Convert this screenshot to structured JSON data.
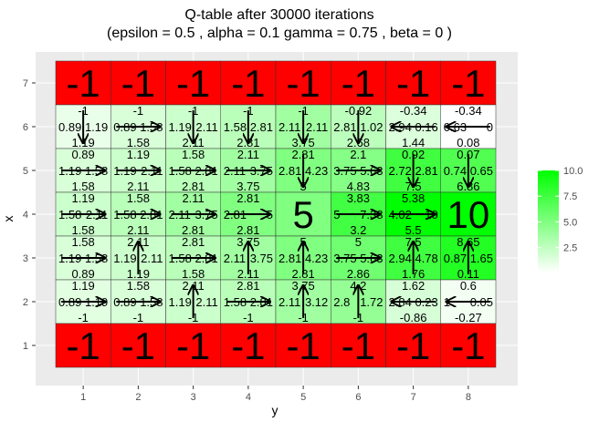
{
  "chart_data": {
    "type": "heatmap",
    "title_line1": "Q-table after  30000  iterations",
    "title_line2": "(epsilon =  0.5 , alpha =  0.1 gamma =  0.75 , beta =  0 )",
    "xlabel": "y",
    "ylabel": "x",
    "x_ticks": [
      "1",
      "2",
      "3",
      "4",
      "5",
      "6",
      "7",
      "8"
    ],
    "y_ticks": [
      "1",
      "2",
      "3",
      "4",
      "5",
      "6",
      "7"
    ],
    "colors": {
      "low": "#ffffff",
      "high": "#00ff00",
      "terminal": "#ff0000",
      "panel": "#ebebeb",
      "grid": "#ffffff"
    },
    "legend": {
      "position": "right",
      "ticks": [
        "10.0",
        "7.5",
        "5.0",
        "2.5"
      ],
      "tick_values": [
        10.0,
        7.5,
        5.0,
        2.5
      ],
      "range": [
        0.08,
        10
      ]
    },
    "grid_columns": [
      "1",
      "2",
      "3",
      "4",
      "5",
      "6",
      "7",
      "8"
    ],
    "grid_rows": [
      {
        "x": "7",
        "cells": [
          {
            "value": "-1",
            "terminal": true
          },
          {
            "value": "-1",
            "terminal": true
          },
          {
            "value": "-1",
            "terminal": true
          },
          {
            "value": "-1",
            "terminal": true
          },
          {
            "value": "-1",
            "terminal": true
          },
          {
            "value": "-1",
            "terminal": true
          },
          {
            "value": "-1",
            "terminal": true
          },
          {
            "value": "-1",
            "terminal": true
          }
        ]
      },
      {
        "x": "6",
        "cells": [
          {
            "v": 0.89,
            "up": "-1",
            "down": "1.19",
            "left": "0.89",
            "right": "1.19",
            "arrow": "down"
          },
          {
            "v": 1.58,
            "up": "-1",
            "down": "1.58",
            "left": "0.89",
            "right": "1.58",
            "arrow": "right"
          },
          {
            "v": 2.11,
            "up": "-1",
            "down": "2.11",
            "left": "1.19",
            "right": "2.11",
            "arrow": "down"
          },
          {
            "v": 2.81,
            "up": "-1",
            "down": "2.81",
            "left": "1.58",
            "right": "2.81",
            "arrow": "down"
          },
          {
            "v": 3.75,
            "up": "-1",
            "down": "3.75",
            "left": "2.11",
            "right": "2.11",
            "arrow": "down"
          },
          {
            "v": 2.68,
            "up": "-0.92",
            "down": "2.68",
            "left": "2.81",
            "right": "1.02",
            "arrow": "down"
          },
          {
            "v": 1.44,
            "up": "-0.34",
            "down": "1.44",
            "left": "2.94",
            "right": "0.16",
            "arrow": "left"
          },
          {
            "v": 0.08,
            "up": "-0.34",
            "down": "0.08",
            "left": "0.63",
            "right": "0",
            "arrow": "left"
          }
        ]
      },
      {
        "x": "5",
        "cells": [
          {
            "v": 1.58,
            "up": "0.89",
            "down": "1.58",
            "left": "1.19",
            "right": "1.58",
            "arrow": "right"
          },
          {
            "v": 2.11,
            "up": "1.19",
            "down": "2.11",
            "left": "1.19",
            "right": "2.11",
            "arrow": "right"
          },
          {
            "v": 2.81,
            "up": "1.58",
            "down": "2.81",
            "left": "1.58",
            "right": "2.81",
            "arrow": "right"
          },
          {
            "v": 3.75,
            "up": "2.11",
            "down": "3.75",
            "left": "2.11",
            "right": "3.75",
            "arrow": "right"
          },
          {
            "v": 5,
            "up": "2.81",
            "down": "5",
            "left": "2.81",
            "right": "4.23",
            "arrow": "down"
          },
          {
            "v": 4.83,
            "up": "2.1",
            "down": "4.83",
            "left": "3.75",
            "right": "5.63",
            "arrow": "right"
          },
          {
            "v": 7.5,
            "up": "0.92",
            "down": "7.5",
            "left": "2.72",
            "right": "2.81",
            "arrow": "down"
          },
          {
            "v": 6.86,
            "up": "0.07",
            "down": "6.86",
            "left": "0.74",
            "right": "0.65",
            "arrow": "down"
          }
        ]
      },
      {
        "x": "4",
        "cells": [
          {
            "v": 2.11,
            "up": "1.19",
            "down": "1.58",
            "left": "1.58",
            "right": "2.11",
            "arrow": "right"
          },
          {
            "v": 2.81,
            "up": "1.58",
            "down": "2.11",
            "left": "1.58",
            "right": "2.81",
            "arrow": "right"
          },
          {
            "v": 3.75,
            "up": "2.11",
            "down": "2.81",
            "left": "2.11",
            "right": "3.75",
            "arrow": "right"
          },
          {
            "v": 5,
            "up": "2.81",
            "down": "2.81",
            "left": "2.81",
            "right": "5",
            "arrow": "right"
          },
          {
            "value": "5",
            "goal": true
          },
          {
            "v": 7.38,
            "up": "3.83",
            "down": "3.2",
            "left": "5",
            "right": "7.38",
            "arrow": "right"
          },
          {
            "v": 10,
            "up": "5.38",
            "down": "5.5",
            "left": "4.02",
            "right": "10",
            "arrow": "right"
          },
          {
            "value": "10",
            "goal": true
          }
        ]
      },
      {
        "x": "3",
        "cells": [
          {
            "v": 1.58,
            "up": "1.58",
            "down": "0.89",
            "left": "1.19",
            "right": "1.58",
            "arrow": "right"
          },
          {
            "v": 2.11,
            "up": "2.11",
            "down": "1.19",
            "left": "1.19",
            "right": "2.11",
            "arrow": "up"
          },
          {
            "v": 2.81,
            "up": "2.81",
            "down": "1.58",
            "left": "1.58",
            "right": "2.81",
            "arrow": "right"
          },
          {
            "v": 3.75,
            "up": "3.75",
            "down": "2.11",
            "left": "2.11",
            "right": "3.75",
            "arrow": "up"
          },
          {
            "v": 5,
            "up": "5",
            "down": "2.81",
            "left": "2.81",
            "right": "4.23",
            "arrow": "up"
          },
          {
            "v": 5.63,
            "up": "5",
            "down": "2.86",
            "left": "3.75",
            "right": "5.63",
            "arrow": "right"
          },
          {
            "v": 7.5,
            "up": "7.5",
            "down": "1.76",
            "left": "2.94",
            "right": "4.78",
            "arrow": "up"
          },
          {
            "v": 8.65,
            "up": "8.65",
            "down": "0.11",
            "left": "0.87",
            "right": "1.65",
            "arrow": "up"
          }
        ]
      },
      {
        "x": "2",
        "cells": [
          {
            "v": 1.19,
            "up": "1.19",
            "down": "-1",
            "left": "0.89",
            "right": "1.19",
            "arrow": "right"
          },
          {
            "v": 1.58,
            "up": "1.58",
            "down": "-1",
            "left": "0.89",
            "right": "1.58",
            "arrow": "right"
          },
          {
            "v": 2.11,
            "up": "2.11",
            "down": "-1",
            "left": "1.19",
            "right": "2.11",
            "arrow": "up"
          },
          {
            "v": 2.81,
            "up": "2.81",
            "down": "-1",
            "left": "1.58",
            "right": "2.81",
            "arrow": "right"
          },
          {
            "v": 3.75,
            "up": "3.75",
            "down": "-1",
            "left": "2.11",
            "right": "3.12",
            "arrow": "up"
          },
          {
            "v": 4.2,
            "up": "4.2",
            "down": "-1",
            "left": "2.8",
            "right": "1.72",
            "arrow": "up"
          },
          {
            "v": 1.62,
            "up": "1.62",
            "down": "-0.86",
            "left": "2.84",
            "right": "0.23",
            "arrow": "left"
          },
          {
            "v": 0.6,
            "up": "0.6",
            "down": "-0.27",
            "left": "1",
            "right": "0.05",
            "arrow": "left"
          }
        ]
      },
      {
        "x": "1",
        "cells": [
          {
            "value": "-1",
            "terminal": true
          },
          {
            "value": "-1",
            "terminal": true
          },
          {
            "value": "-1",
            "terminal": true
          },
          {
            "value": "-1",
            "terminal": true
          },
          {
            "value": "-1",
            "terminal": true
          },
          {
            "value": "-1",
            "terminal": true
          },
          {
            "value": "-1",
            "terminal": true
          },
          {
            "value": "-1",
            "terminal": true
          }
        ]
      }
    ]
  }
}
